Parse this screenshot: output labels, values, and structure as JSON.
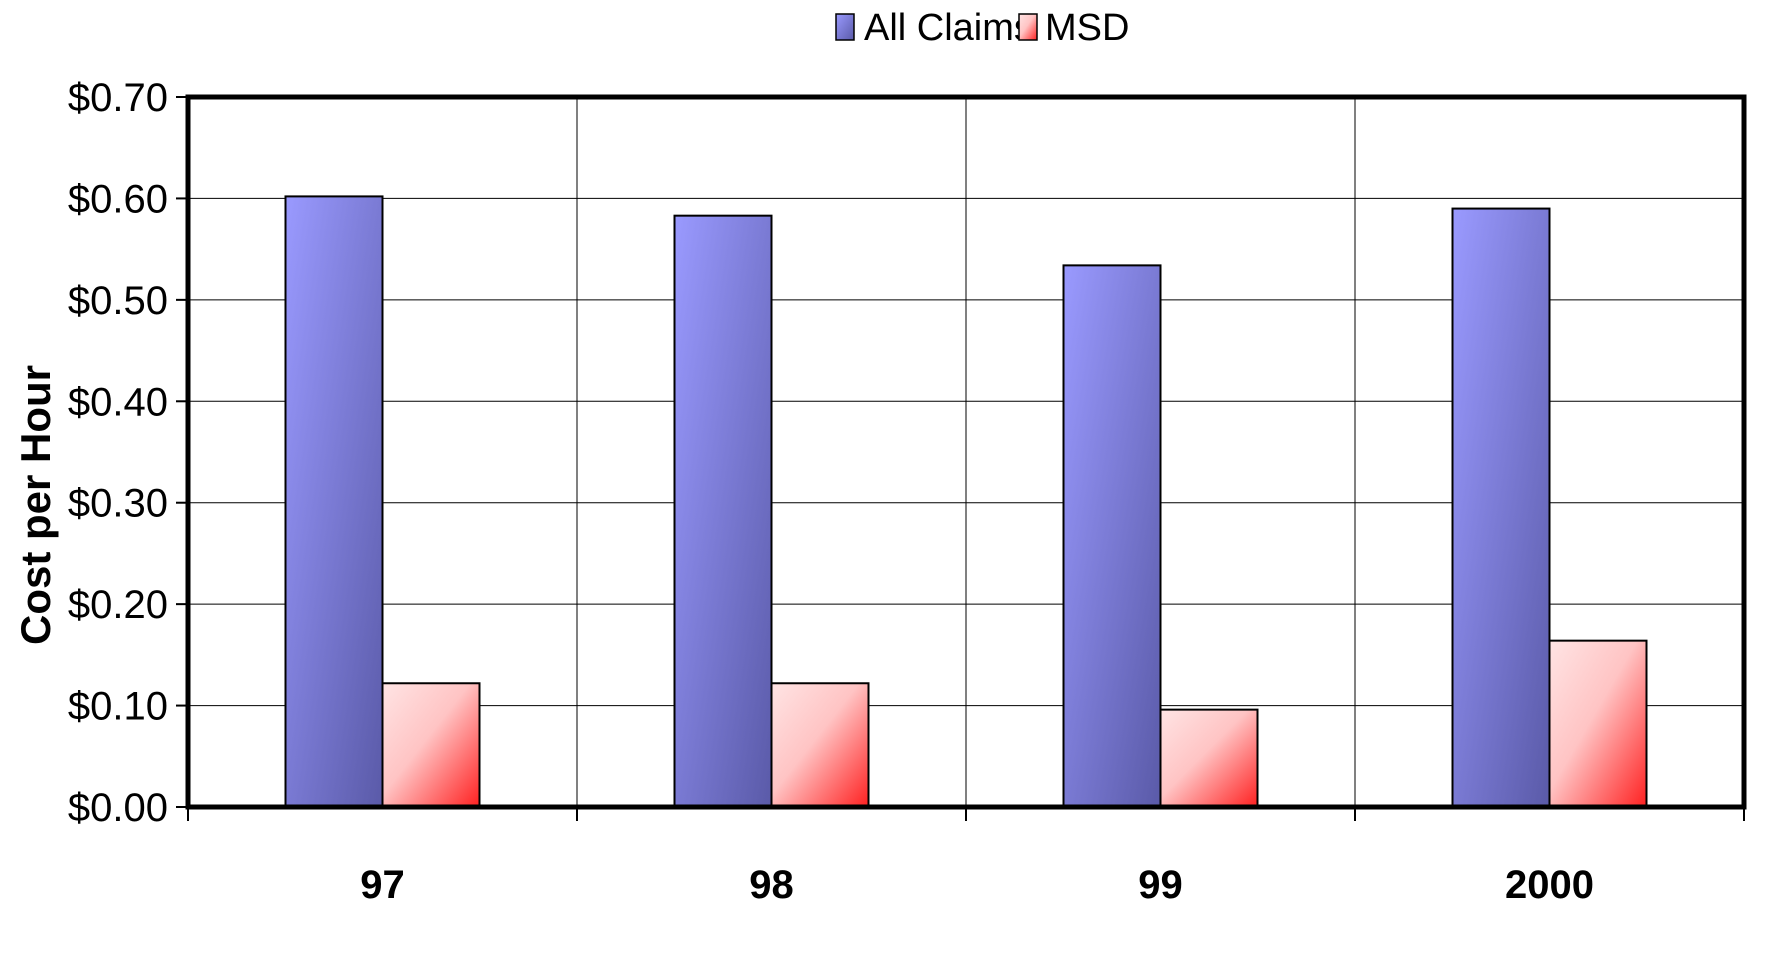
{
  "chart_data": {
    "type": "bar",
    "categories": [
      "97",
      "98",
      "99",
      "2000"
    ],
    "series": [
      {
        "name": "All Claims",
        "values": [
          0.602,
          0.583,
          0.534,
          0.59
        ],
        "color": "#8c8cf0"
      },
      {
        "name": "MSD",
        "values": [
          0.122,
          0.122,
          0.096,
          0.164
        ],
        "color": "#ff6a6a"
      }
    ],
    "title": "",
    "xlabel": "",
    "ylabel": "Cost per Hour",
    "ylim": [
      0,
      0.7
    ],
    "yticks": [
      "$0.00",
      "$0.10",
      "$0.20",
      "$0.30",
      "$0.40",
      "$0.50",
      "$0.60",
      "$0.70"
    ],
    "grid": true,
    "legend": "top-center"
  }
}
